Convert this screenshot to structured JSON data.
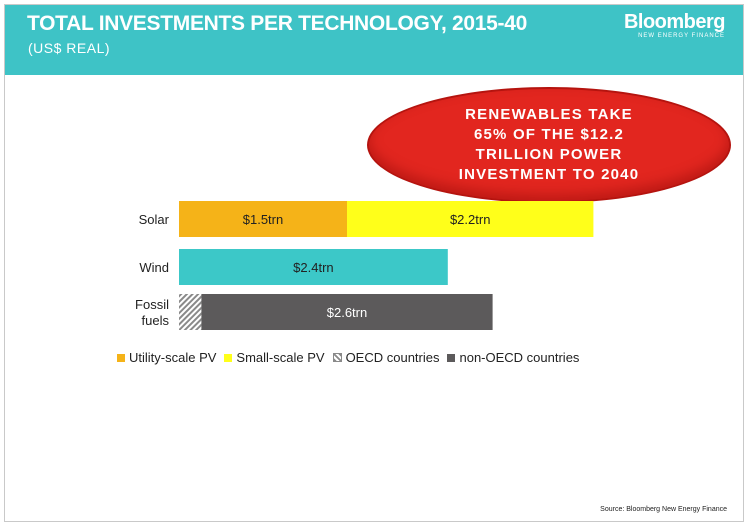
{
  "header": {
    "title": "TOTAL INVESTMENTS PER TECHNOLOGY, 2015-40",
    "subtitle": "(US$ REAL)",
    "brand": "Bloomberg",
    "brand_sub": "NEW ENERGY FINANCE"
  },
  "callout": {
    "text": "RENEWABLES TAKE\n65% OF THE $12.2\nTRILLION POWER\nINVESTMENT TO 2040"
  },
  "colors": {
    "banner": "#3ec3c6",
    "utility_pv": "#f5b318",
    "small_pv": "#ffff1a",
    "wind": "#3cc8c8",
    "oecd": "#8a8a8a",
    "non_oecd": "#5c5a5b"
  },
  "chart_data": {
    "type": "bar",
    "orientation": "horizontal",
    "stacked": true,
    "categories": [
      "Solar",
      "Wind",
      "Fossil fuels"
    ],
    "series": [
      {
        "name": "Utility-scale PV",
        "values": [
          1.5,
          0,
          0
        ],
        "labels": [
          "$1.5trn",
          "",
          ""
        ],
        "color": "#f5b318",
        "pattern": "solid"
      },
      {
        "name": "Small-scale PV",
        "values": [
          2.2,
          0,
          0
        ],
        "labels": [
          "$2.2trn",
          "",
          ""
        ],
        "color": "#ffff1a",
        "pattern": "solid"
      },
      {
        "name": "Wind",
        "values": [
          0,
          2.4,
          0
        ],
        "labels": [
          "",
          "$2.4trn",
          ""
        ],
        "color": "#3cc8c8",
        "pattern": "solid",
        "in_legend": false
      },
      {
        "name": "OECD countries",
        "values": [
          0,
          0,
          0.2
        ],
        "labels": [
          "",
          "",
          ""
        ],
        "color": "#8a8a8a",
        "pattern": "hatch"
      },
      {
        "name": "non-OECD countries",
        "values": [
          0,
          0,
          2.6
        ],
        "labels": [
          "",
          "",
          "$2.6trn"
        ],
        "color": "#5c5a5b",
        "pattern": "solid"
      }
    ],
    "unit": "US$ trillion",
    "grid": false,
    "legend_position": "bottom"
  },
  "source": "Source: Bloomberg New Energy Finance"
}
